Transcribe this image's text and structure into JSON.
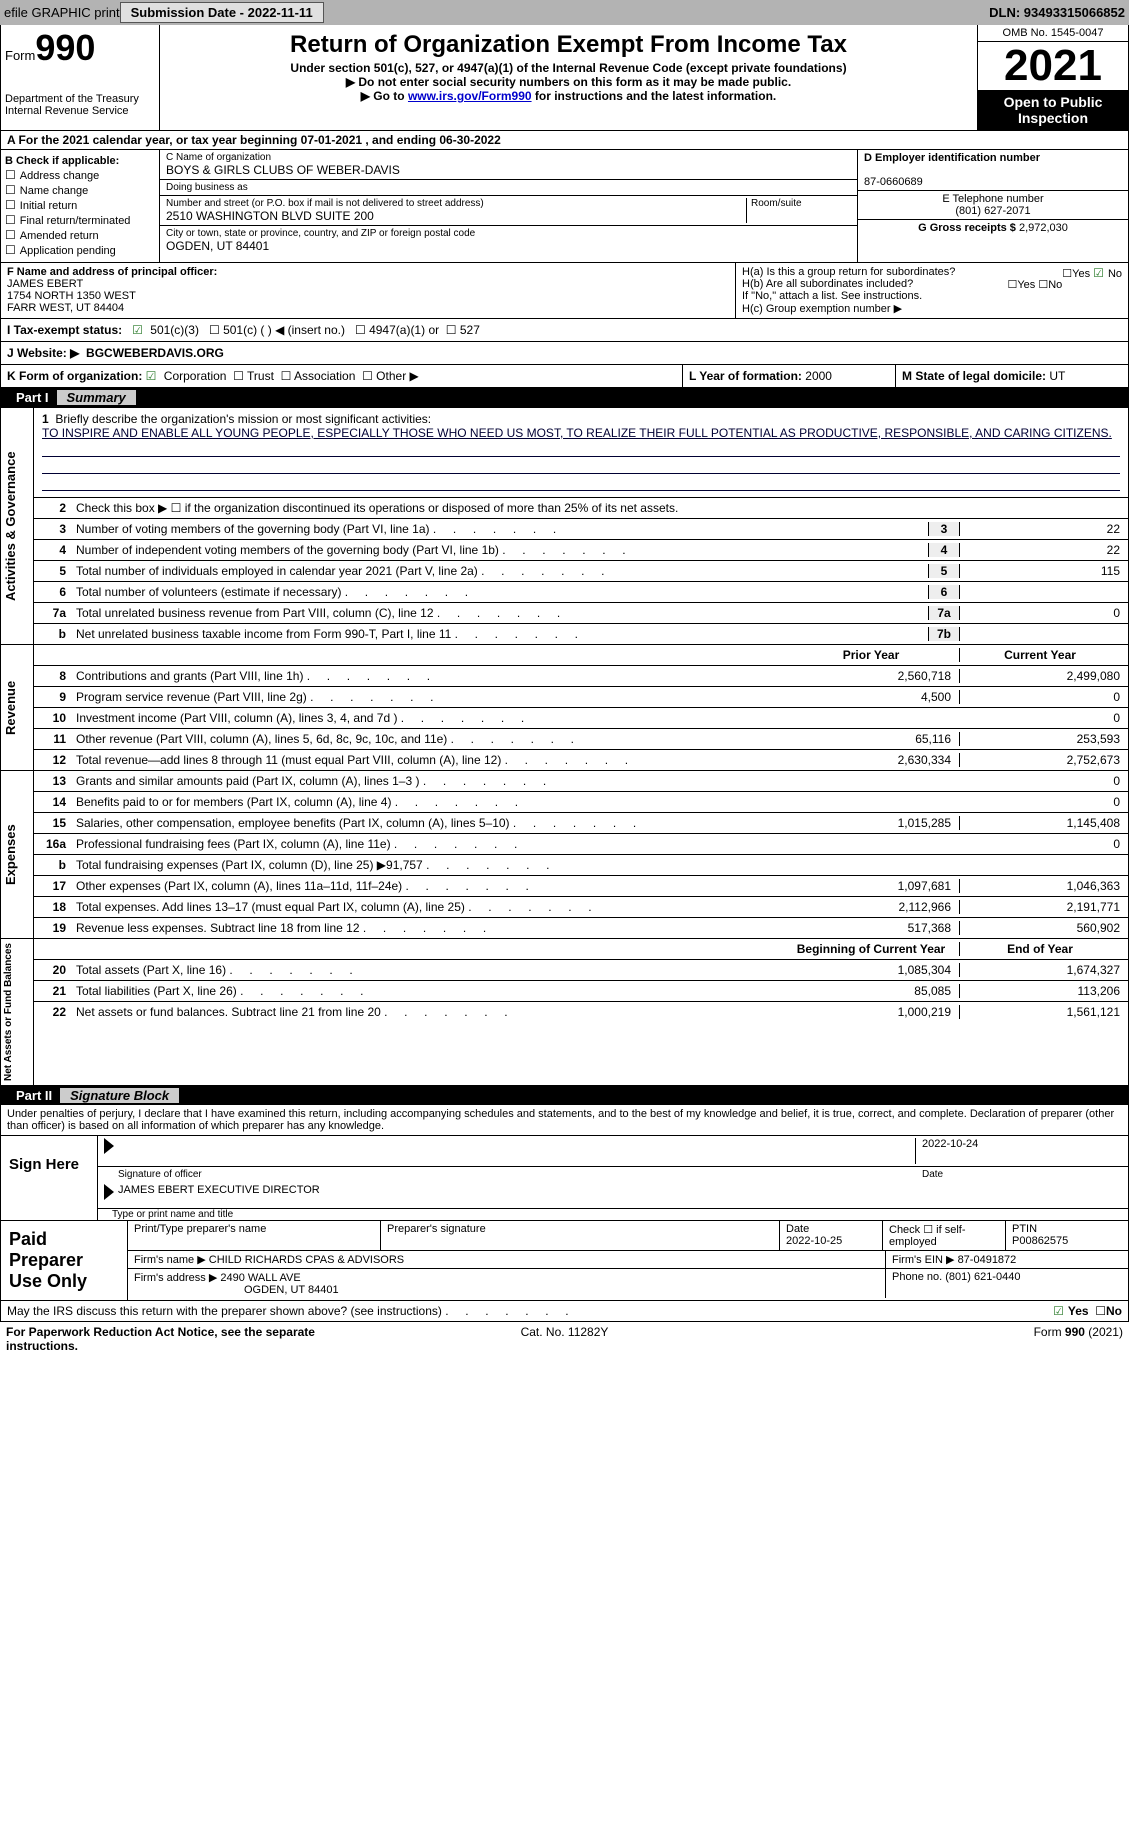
{
  "topbar": {
    "efile": "efile GRAPHIC print",
    "submission": "Submission Date - 2022-11-11",
    "dln": "DLN: 93493315066852"
  },
  "header": {
    "form_prefix": "Form",
    "form_num": "990",
    "dept": "Department of the Treasury",
    "irs": "Internal Revenue Service",
    "title": "Return of Organization Exempt From Income Tax",
    "subtitle": "Under section 501(c), 527, or 4947(a)(1) of the Internal Revenue Code (except private foundations)",
    "note1": "▶ Do not enter social security numbers on this form as it may be made public.",
    "note2_pre": "▶ Go to ",
    "note2_link": "www.irs.gov/Form990",
    "note2_post": " for instructions and the latest information.",
    "omb": "OMB No. 1545-0047",
    "year": "2021",
    "open": "Open to Public Inspection"
  },
  "period": "A For the 2021 calendar year, or tax year beginning 07-01-2021    , and ending 06-30-2022",
  "sectionB": {
    "label": "B Check if applicable:",
    "items": [
      "Address change",
      "Name change",
      "Initial return",
      "Final return/terminated",
      "Amended return",
      "Application pending"
    ]
  },
  "sectionC": {
    "name_lbl": "C Name of organization",
    "name": "BOYS & GIRLS CLUBS OF WEBER-DAVIS",
    "dba_lbl": "Doing business as",
    "addr_lbl": "Number and street (or P.O. box if mail is not delivered to street address)",
    "addr": "2510 WASHINGTON BLVD SUITE 200",
    "room_lbl": "Room/suite",
    "city_lbl": "City or town, state or province, country, and ZIP or foreign postal code",
    "city": "OGDEN, UT  84401"
  },
  "sectionD": {
    "ein_lbl": "D Employer identification number",
    "ein": "87-0660689",
    "phone_lbl": "E Telephone number",
    "phone": "(801) 627-2071",
    "gross_lbl": "G Gross receipts $",
    "gross": "2,972,030"
  },
  "sectionF": {
    "lbl": "F Name and address of principal officer:",
    "name": "JAMES EBERT",
    "addr1": "1754 NORTH 1350 WEST",
    "addr2": "FARR WEST, UT  84404"
  },
  "sectionH": {
    "ha": "H(a)  Is this a group return for subordinates?",
    "hb": "H(b)  Are all subordinates included?",
    "hb_note": "If \"No,\" attach a list. See instructions.",
    "hc": "H(c)  Group exemption number ▶",
    "yes": "Yes",
    "no": "No"
  },
  "sectionI": {
    "lbl": "I  Tax-exempt status:",
    "opt1": "501(c)(3)",
    "opt2": "501(c) (  ) ◀ (insert no.)",
    "opt3": "4947(a)(1) or",
    "opt4": "527"
  },
  "sectionJ": {
    "lbl": "J  Website: ▶",
    "val": "BGCWEBERDAVIS.ORG"
  },
  "sectionK": {
    "lbl": "K Form of organization:",
    "corp": "Corporation",
    "trust": "Trust",
    "assoc": "Association",
    "other": "Other ▶"
  },
  "sectionL": {
    "lbl": "L Year of formation:",
    "val": "2000"
  },
  "sectionM": {
    "lbl": "M State of legal domicile:",
    "val": "UT"
  },
  "parts": {
    "p1": "Part I",
    "p1t": "Summary",
    "p2": "Part II",
    "p2t": "Signature Block"
  },
  "summary": {
    "l1_lbl": "Briefly describe the organization's mission or most significant activities:",
    "l1_txt": "TO INSPIRE AND ENABLE ALL YOUNG PEOPLE, ESPECIALLY THOSE WHO NEED US MOST, TO REALIZE THEIR FULL POTENTIAL AS PRODUCTIVE, RESPONSIBLE, AND CARING CITIZENS.",
    "l2": "Check this box ▶ ☐ if the organization discontinued its operations or disposed of more than 25% of its net assets.",
    "lines_gov": [
      {
        "n": "3",
        "d": "Number of voting members of the governing body (Part VI, line 1a)",
        "box": "3",
        "v": "22"
      },
      {
        "n": "4",
        "d": "Number of independent voting members of the governing body (Part VI, line 1b)",
        "box": "4",
        "v": "22"
      },
      {
        "n": "5",
        "d": "Total number of individuals employed in calendar year 2021 (Part V, line 2a)",
        "box": "5",
        "v": "115"
      },
      {
        "n": "6",
        "d": "Total number of volunteers (estimate if necessary)",
        "box": "6",
        "v": ""
      },
      {
        "n": "7a",
        "d": "Total unrelated business revenue from Part VIII, column (C), line 12",
        "box": "7a",
        "v": "0"
      },
      {
        "n": "b",
        "d": "Net unrelated business taxable income from Form 990-T, Part I, line 11",
        "box": "7b",
        "v": ""
      }
    ],
    "col_prior": "Prior Year",
    "col_curr": "Current Year",
    "revenue": [
      {
        "n": "8",
        "d": "Contributions and grants (Part VIII, line 1h)",
        "p": "2,560,718",
        "c": "2,499,080"
      },
      {
        "n": "9",
        "d": "Program service revenue (Part VIII, line 2g)",
        "p": "4,500",
        "c": "0"
      },
      {
        "n": "10",
        "d": "Investment income (Part VIII, column (A), lines 3, 4, and 7d )",
        "p": "",
        "c": "0"
      },
      {
        "n": "11",
        "d": "Other revenue (Part VIII, column (A), lines 5, 6d, 8c, 9c, 10c, and 11e)",
        "p": "65,116",
        "c": "253,593"
      },
      {
        "n": "12",
        "d": "Total revenue—add lines 8 through 11 (must equal Part VIII, column (A), line 12)",
        "p": "2,630,334",
        "c": "2,752,673"
      }
    ],
    "expenses": [
      {
        "n": "13",
        "d": "Grants and similar amounts paid (Part IX, column (A), lines 1–3 )",
        "p": "",
        "c": "0"
      },
      {
        "n": "14",
        "d": "Benefits paid to or for members (Part IX, column (A), line 4)",
        "p": "",
        "c": "0"
      },
      {
        "n": "15",
        "d": "Salaries, other compensation, employee benefits (Part IX, column (A), lines 5–10)",
        "p": "1,015,285",
        "c": "1,145,408"
      },
      {
        "n": "16a",
        "d": "Professional fundraising fees (Part IX, column (A), line 11e)",
        "p": "",
        "c": "0"
      },
      {
        "n": "b",
        "d": "Total fundraising expenses (Part IX, column (D), line 25) ▶91,757",
        "p": "shaded",
        "c": "shaded"
      },
      {
        "n": "17",
        "d": "Other expenses (Part IX, column (A), lines 11a–11d, 11f–24e)",
        "p": "1,097,681",
        "c": "1,046,363"
      },
      {
        "n": "18",
        "d": "Total expenses. Add lines 13–17 (must equal Part IX, column (A), line 25)",
        "p": "2,112,966",
        "c": "2,191,771"
      },
      {
        "n": "19",
        "d": "Revenue less expenses. Subtract line 18 from line 12",
        "p": "517,368",
        "c": "560,902"
      }
    ],
    "col_begin": "Beginning of Current Year",
    "col_end": "End of Year",
    "netassets": [
      {
        "n": "20",
        "d": "Total assets (Part X, line 16)",
        "p": "1,085,304",
        "c": "1,674,327"
      },
      {
        "n": "21",
        "d": "Total liabilities (Part X, line 26)",
        "p": "85,085",
        "c": "113,206"
      },
      {
        "n": "22",
        "d": "Net assets or fund balances. Subtract line 21 from line 20",
        "p": "1,000,219",
        "c": "1,561,121"
      }
    ],
    "side_gov": "Activities & Governance",
    "side_rev": "Revenue",
    "side_exp": "Expenses",
    "side_net": "Net Assets or Fund Balances"
  },
  "penalty": "Under penalties of perjury, I declare that I have examined this return, including accompanying schedules and statements, and to the best of my knowledge and belief, it is true, correct, and complete. Declaration of preparer (other than officer) is based on all information of which preparer has any knowledge.",
  "sign": {
    "here": "Sign Here",
    "sig_lbl": "Signature of officer",
    "date": "2022-10-24",
    "date_lbl": "Date",
    "name": "JAMES EBERT  EXECUTIVE DIRECTOR",
    "name_lbl": "Type or print name and title"
  },
  "preparer": {
    "title": "Paid Preparer Use Only",
    "name_lbl": "Print/Type preparer's name",
    "sig_lbl": "Preparer's signature",
    "date_lbl": "Date",
    "date": "2022-10-25",
    "check_lbl": "Check ☐ if self-employed",
    "ptin_lbl": "PTIN",
    "ptin": "P00862575",
    "firm_name_lbl": "Firm's name    ▶",
    "firm_name": "CHILD RICHARDS CPAS & ADVISORS",
    "firm_ein_lbl": "Firm's EIN ▶",
    "firm_ein": "87-0491872",
    "firm_addr_lbl": "Firm's address ▶",
    "firm_addr1": "2490 WALL AVE",
    "firm_addr2": "OGDEN, UT  84401",
    "phone_lbl": "Phone no.",
    "phone": "(801) 621-0440"
  },
  "discuss": {
    "txt": "May the IRS discuss this return with the preparer shown above? (see instructions)",
    "yes": "Yes",
    "no": "No"
  },
  "footer": {
    "left": "For Paperwork Reduction Act Notice, see the separate instructions.",
    "center": "Cat. No. 11282Y",
    "right": "Form 990 (2021)"
  }
}
